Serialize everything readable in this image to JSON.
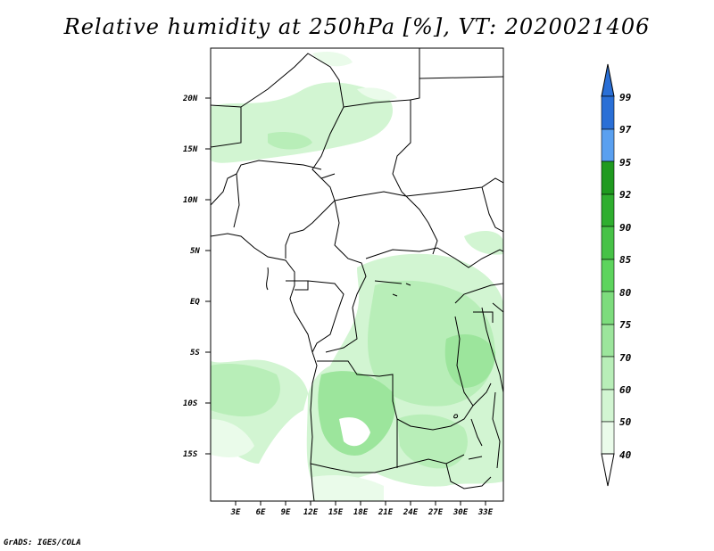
{
  "title": "Relative humidity at 250hPa [%], VT: 2020021406",
  "credit": "GrADS: IGES/COLA",
  "map": {
    "lat_labels": [
      "20N",
      "15N",
      "10N",
      "5N",
      "EQ",
      "5S",
      "10S",
      "15S"
    ],
    "lon_labels": [
      "3E",
      "6E",
      "9E",
      "12E",
      "15E",
      "18E",
      "21E",
      "24E",
      "27E",
      "30E",
      "33E"
    ]
  },
  "legend": {
    "levels": [
      "99",
      "97",
      "95",
      "92",
      "90",
      "85",
      "80",
      "75",
      "70",
      "60",
      "50",
      "40"
    ],
    "colors": {
      "above_99": "#2a6fd6",
      "97_99": "#3a82e6",
      "95_97": "#5aa0f0",
      "92_95": "#1f9a1f",
      "90_92": "#2fae2f",
      "85_90": "#47c247",
      "80_85": "#5dd45d",
      "75_80": "#7ddc7d",
      "70_75": "#9ce59c",
      "60_70": "#b8eeb8",
      "50_60": "#d2f5d2",
      "40_50": "#eafbea",
      "below_40": "#ffffff"
    }
  }
}
